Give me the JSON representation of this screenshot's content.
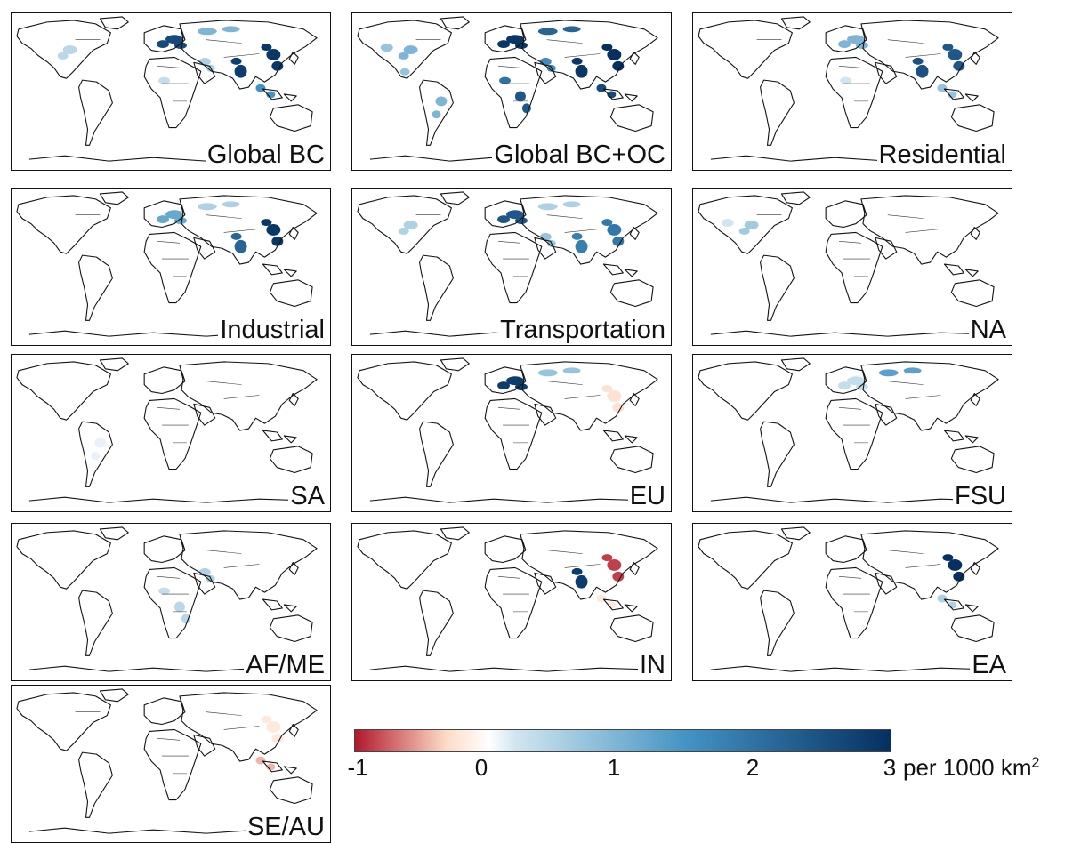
{
  "panels": [
    {
      "label": "Global BC",
      "hotspots": [
        {
          "region": "eastern-north-america",
          "value": 0.5
        },
        {
          "region": "europe",
          "value": 2.6
        },
        {
          "region": "russia",
          "value": 1.0
        },
        {
          "region": "middle-east",
          "value": 0.6
        },
        {
          "region": "west-africa",
          "value": 0.4
        },
        {
          "region": "south-asia",
          "value": 2.8
        },
        {
          "region": "east-asia",
          "value": 2.9
        },
        {
          "region": "southeast-asia",
          "value": 1.5
        }
      ]
    },
    {
      "label": "Global BC+OC",
      "hotspots": [
        {
          "region": "western-north-america",
          "value": 0.8
        },
        {
          "region": "eastern-north-america",
          "value": 1.0
        },
        {
          "region": "central-america",
          "value": 0.8
        },
        {
          "region": "south-america",
          "value": 1.0
        },
        {
          "region": "europe",
          "value": 2.9
        },
        {
          "region": "russia",
          "value": 2.2
        },
        {
          "region": "middle-east",
          "value": 1.6
        },
        {
          "region": "west-africa",
          "value": 2.0
        },
        {
          "region": "central-africa",
          "value": 2.4
        },
        {
          "region": "south-asia",
          "value": 2.9
        },
        {
          "region": "east-asia",
          "value": 3.0
        },
        {
          "region": "southeast-asia",
          "value": 2.6
        }
      ]
    },
    {
      "label": "Residential",
      "hotspots": [
        {
          "region": "europe",
          "value": 1.0
        },
        {
          "region": "south-asia",
          "value": 2.5
        },
        {
          "region": "east-asia",
          "value": 2.4
        },
        {
          "region": "west-africa",
          "value": 0.3
        },
        {
          "region": "southeast-asia",
          "value": 0.8
        }
      ]
    },
    {
      "label": "Industrial",
      "hotspots": [
        {
          "region": "europe",
          "value": 1.2
        },
        {
          "region": "russia",
          "value": 0.6
        },
        {
          "region": "south-asia",
          "value": 2.2
        },
        {
          "region": "east-asia",
          "value": 2.9
        }
      ]
    },
    {
      "label": "Transportation",
      "hotspots": [
        {
          "region": "eastern-north-america",
          "value": 0.6
        },
        {
          "region": "europe",
          "value": 2.4
        },
        {
          "region": "russia",
          "value": 0.6
        },
        {
          "region": "middle-east",
          "value": 0.8
        },
        {
          "region": "south-asia",
          "value": 1.8
        },
        {
          "region": "east-asia",
          "value": 1.9
        }
      ]
    },
    {
      "label": "NA",
      "hotspots": [
        {
          "region": "eastern-north-america",
          "value": 0.7
        },
        {
          "region": "western-north-america",
          "value": 0.3
        }
      ]
    },
    {
      "label": "SA",
      "hotspots": [
        {
          "region": "south-america",
          "value": 0.15
        }
      ]
    },
    {
      "label": "EU",
      "hotspots": [
        {
          "region": "europe",
          "value": 2.8
        },
        {
          "region": "russia",
          "value": 0.8
        },
        {
          "region": "east-asia",
          "value": -0.4
        }
      ]
    },
    {
      "label": "FSU",
      "hotspots": [
        {
          "region": "russia",
          "value": 1.3
        },
        {
          "region": "europe",
          "value": 0.4
        }
      ]
    },
    {
      "label": "AF/ME",
      "hotspots": [
        {
          "region": "west-africa",
          "value": 0.4
        },
        {
          "region": "central-africa",
          "value": 0.5
        },
        {
          "region": "middle-east",
          "value": 0.6
        }
      ]
    },
    {
      "label": "IN",
      "hotspots": [
        {
          "region": "south-asia",
          "value": 2.8
        },
        {
          "region": "east-asia",
          "value": -0.9
        },
        {
          "region": "southeast-asia",
          "value": -0.3
        }
      ]
    },
    {
      "label": "EA",
      "hotspots": [
        {
          "region": "east-asia",
          "value": 3.0
        },
        {
          "region": "southeast-asia",
          "value": 0.6
        }
      ]
    },
    {
      "label": "SE/AU",
      "hotspots": [
        {
          "region": "southeast-asia",
          "value": -0.6
        },
        {
          "region": "east-asia",
          "value": -0.3
        }
      ]
    }
  ],
  "colorbar": {
    "min": -1,
    "max": 3,
    "ticks": [
      "-1",
      "0",
      "1",
      "2",
      "3"
    ],
    "unit_text": "per 1000 km",
    "unit_superscript": "2",
    "colors": {
      "negative_strong": "#b2182b",
      "negative_light": "#fddbc7",
      "zero": "#ffffff",
      "positive_light": "#d1e5f0",
      "positive_mid": "#4393c3",
      "positive_strong": "#053061"
    }
  }
}
